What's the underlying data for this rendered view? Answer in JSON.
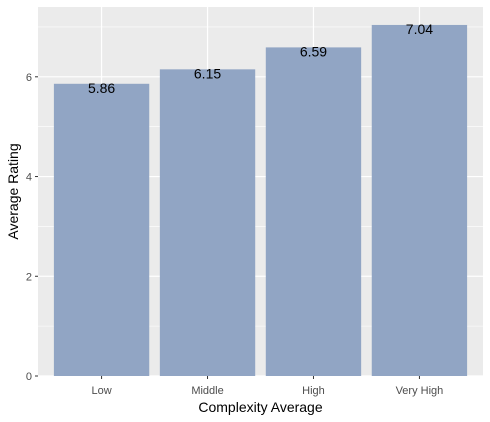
{
  "chart_data": {
    "type": "bar",
    "categories": [
      "Low",
      "Middle",
      "High",
      "Very High"
    ],
    "values": [
      5.86,
      6.15,
      6.59,
      7.04
    ],
    "data_labels": [
      "5.86",
      "6.15",
      "6.59",
      "7.04"
    ],
    "xlabel": "Complexity Average",
    "ylabel": "Average Rating",
    "ylim": [
      0,
      7.4
    ],
    "yticks": [
      0,
      2,
      4,
      6
    ],
    "grid": true,
    "colors": {
      "bar": "#91a5c4",
      "panel": "#ebebeb",
      "grid": "#ffffff"
    }
  }
}
